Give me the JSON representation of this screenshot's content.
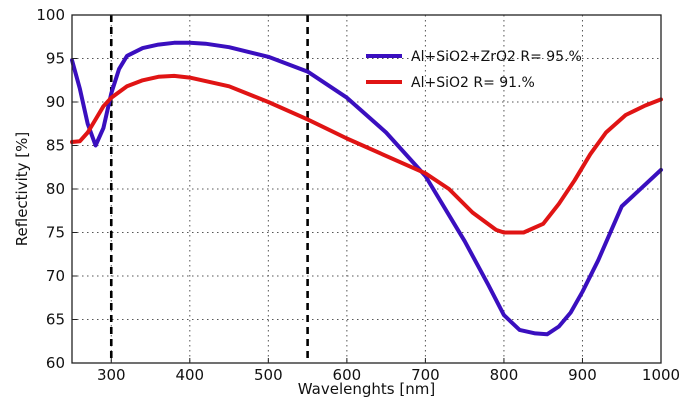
{
  "chart_data": {
    "type": "line",
    "xlabel": "Wavelenghts [nm]",
    "ylabel": "Reflectivity [%]",
    "xlim": [
      250,
      1000
    ],
    "ylim": [
      60,
      100
    ],
    "x_ticks": [
      300,
      400,
      500,
      600,
      700,
      800,
      900,
      1000
    ],
    "y_ticks": [
      60,
      65,
      70,
      75,
      80,
      85,
      90,
      95,
      100
    ],
    "grid": true,
    "legend_position": "top-right",
    "vertical_markers": [
      300,
      550
    ],
    "series": [
      {
        "name": "Al+SiO2+ZrO2 R=  95.%",
        "color": "#3a0fbf",
        "x": [
          250,
          260,
          270,
          280,
          290,
          300,
          310,
          320,
          340,
          360,
          380,
          400,
          420,
          450,
          500,
          550,
          600,
          650,
          700,
          750,
          780,
          800,
          820,
          840,
          855,
          870,
          885,
          900,
          920,
          950,
          1000
        ],
        "y": [
          94.8,
          91.5,
          87.5,
          85.0,
          87.0,
          91.0,
          93.8,
          95.3,
          96.2,
          96.6,
          96.8,
          96.8,
          96.7,
          96.3,
          95.2,
          93.5,
          90.5,
          86.5,
          81.5,
          74.0,
          69.0,
          65.5,
          63.8,
          63.4,
          63.3,
          64.2,
          65.8,
          68.2,
          71.8,
          78.0,
          82.2
        ]
      },
      {
        "name": "Al+SiO2  R=  91.%",
        "color": "#e01414",
        "x": [
          250,
          260,
          270,
          280,
          290,
          300,
          320,
          340,
          360,
          380,
          400,
          450,
          500,
          550,
          600,
          650,
          700,
          730,
          760,
          790,
          800,
          825,
          850,
          870,
          890,
          910,
          930,
          955,
          980,
          1000
        ],
        "y": [
          85.4,
          85.5,
          86.5,
          88.0,
          89.5,
          90.5,
          91.8,
          92.5,
          92.9,
          93.0,
          92.8,
          91.8,
          90.0,
          88.0,
          85.8,
          83.8,
          81.8,
          80.0,
          77.3,
          75.3,
          75.0,
          75.0,
          76.0,
          78.3,
          81.0,
          84.0,
          86.5,
          88.5,
          89.6,
          90.3
        ]
      }
    ]
  }
}
